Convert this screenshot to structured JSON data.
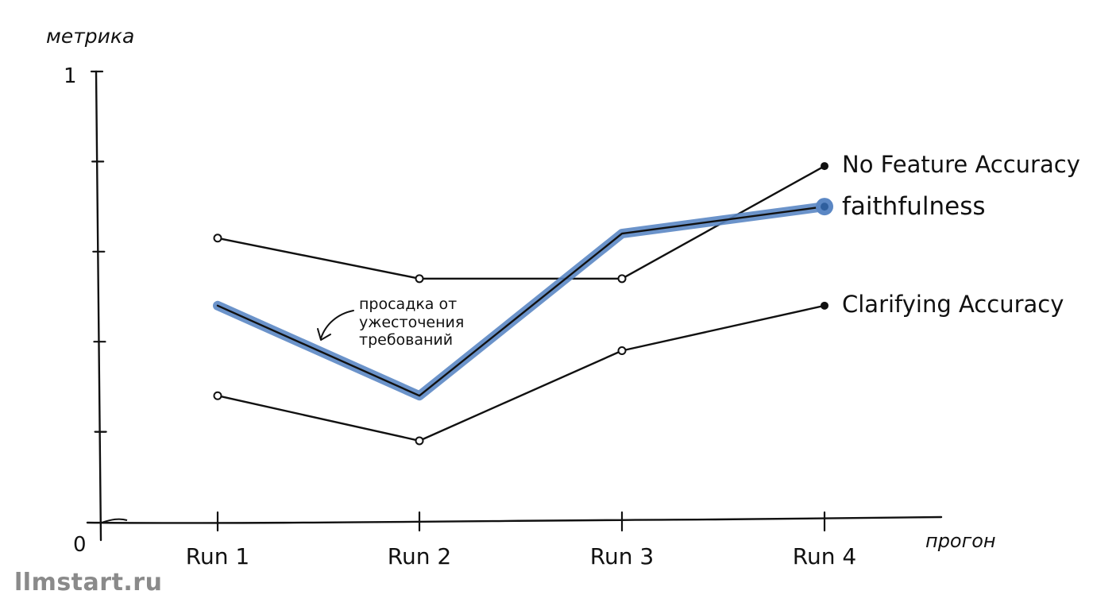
{
  "chart_data": {
    "type": "line",
    "ylabel": "метрика",
    "xlabel": "прогон",
    "ylim": [
      0,
      1
    ],
    "y_tick_labels": [
      "0",
      "1"
    ],
    "categories": [
      "Run 1",
      "Run 2",
      "Run 3",
      "Run 4"
    ],
    "series": [
      {
        "name": "No Feature Accuracy",
        "values": [
          0.63,
          0.54,
          0.54,
          0.79
        ],
        "color": "#111111",
        "highlight": false
      },
      {
        "name": "faithfulness",
        "values": [
          0.48,
          0.28,
          0.64,
          0.7
        ],
        "color": "#111111",
        "highlight": true,
        "highlight_color": "#5b87c4"
      },
      {
        "name": "Clarifying Accuracy",
        "values": [
          0.28,
          0.18,
          0.38,
          0.48
        ],
        "color": "#111111",
        "highlight": false
      }
    ],
    "annotation": {
      "lines": [
        "просадка от",
        "ужесточения",
        "требований"
      ],
      "points_to": {
        "series": "faithfulness",
        "x": "Run 2"
      }
    }
  },
  "watermark": "llmstart.ru"
}
